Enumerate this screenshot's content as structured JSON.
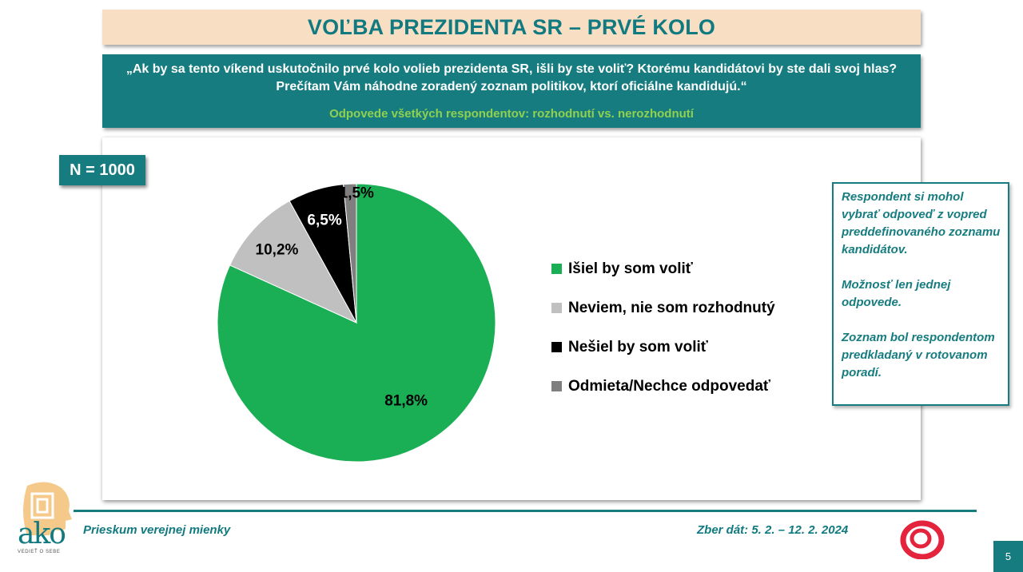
{
  "title": "VOĽBA PREZIDENTA SR – PRVÉ KOLO",
  "question": {
    "line1": "„Ak by sa tento víkend uskutočnilo prvé kolo volieb prezidenta SR, išli by ste voliť? Ktorému kandidátovi by ste dali svoj hlas?",
    "line2": "Prečítam Vám náhodne zoradený zoznam politikov, ktorí oficiálne kandidujú.“",
    "subtitle": "Odpovede všetkých respondentov: rozhodnutí vs. nerozhodnutí"
  },
  "sample": "N = 1000",
  "chart_data": {
    "type": "pie",
    "labels": [
      "Išiel by som voliť",
      "Neviem, nie som rozhodnutý",
      "Nešiel by som voliť",
      "Odmieta/Nechce odpovedať"
    ],
    "values": [
      81.8,
      10.2,
      6.5,
      1.5
    ],
    "value_labels": [
      "81,8%",
      "10,2%",
      "6,5%",
      "1,5%"
    ],
    "colors": [
      "#1aaf54",
      "#c0c0c0",
      "#000000",
      "#7f7f7f"
    ],
    "label_colors": [
      "#000000",
      "#000000",
      "#ffffff",
      "#000000"
    ],
    "legend_position": "right",
    "start": "12 o'clock, clockwise"
  },
  "note": {
    "p1": "Respondent si mohol vybrať odpoveď z vopred preddefinovaného zoznamu kandidátov.",
    "p2": "Možnosť len jednej odpovede.",
    "p3": "Zoznam bol respondentom predkladaný v rotovanom poradí."
  },
  "footer": {
    "left": "Prieskum verejnej mienky",
    "right": "Zber dát: 5. 2. – 12. 2. 2024",
    "page": "5"
  },
  "logo": {
    "text": "ako",
    "tagline": "VEDIEŤ O SEBE"
  },
  "colors": {
    "teal": "#167c80",
    "title_bg": "#f8dfc4",
    "subtitle_green": "#8fd14f"
  }
}
